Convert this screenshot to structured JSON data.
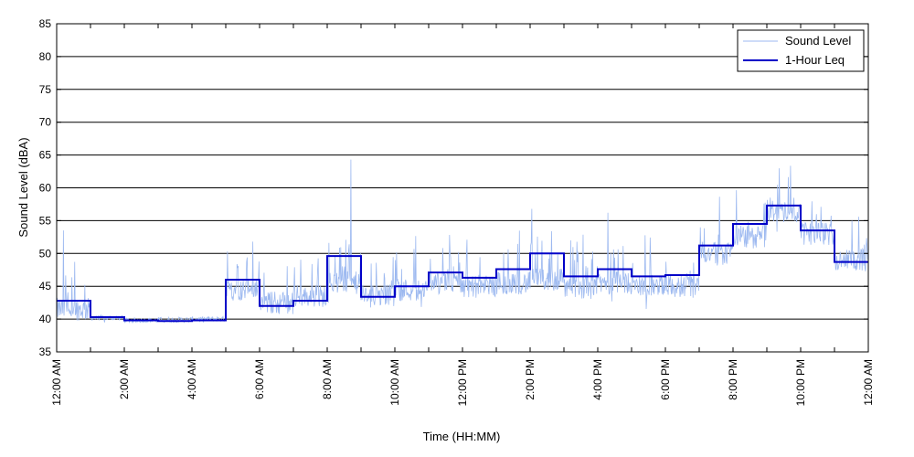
{
  "chart_data": {
    "type": "line",
    "title": "",
    "xlabel": "Time (HH:MM)",
    "ylabel": "Sound Level (dBA)",
    "ylim": [
      35,
      85
    ],
    "yticks": [
      35,
      40,
      45,
      50,
      55,
      60,
      65,
      70,
      75,
      80,
      85
    ],
    "xlim_hours": [
      0,
      24
    ],
    "xtick_hours": [
      0,
      2,
      4,
      6,
      8,
      10,
      12,
      14,
      16,
      18,
      20,
      22,
      24
    ],
    "xtick_labels": [
      "12:00 AM",
      "2:00 AM",
      "4:00 AM",
      "6:00 AM",
      "8:00 AM",
      "10:00 AM",
      "12:00 PM",
      "2:00 PM",
      "4:00 PM",
      "6:00 PM",
      "8:00 PM",
      "10:00 PM",
      "12:00 AM"
    ],
    "grid": "horizontal",
    "legend": {
      "position": "top-right",
      "entries": [
        "Sound Level",
        "1-Hour Leq"
      ]
    },
    "series": [
      {
        "name": "Sound Level",
        "color": "#9db9f0",
        "hourly_baseline": [
          41.5,
          40.2,
          39.8,
          39.9,
          40.0,
          44.5,
          42.5,
          43.5,
          45.5,
          43.5,
          44.5,
          45.5,
          45.0,
          45.5,
          46.0,
          44.8,
          45.5,
          45.0,
          45.0,
          50.0,
          52.5,
          56.5,
          53.0,
          49.0
        ],
        "peaks": [
          {
            "hour": 8.7,
            "value": 64.3
          },
          {
            "hour": 14.05,
            "value": 56.8
          },
          {
            "hour": 16.3,
            "value": 56.2
          },
          {
            "hour": 0.2,
            "value": 53.5
          },
          {
            "hour": 5.8,
            "value": 51.8
          }
        ]
      },
      {
        "name": "1-Hour Leq",
        "color": "#0000c8",
        "hours": [
          0,
          1,
          2,
          3,
          4,
          5,
          6,
          7,
          8,
          9,
          10,
          11,
          12,
          13,
          14,
          15,
          16,
          17,
          18,
          19,
          20,
          21,
          22,
          23
        ],
        "values": [
          42.8,
          40.3,
          39.8,
          39.7,
          39.8,
          46.0,
          42.0,
          42.8,
          49.6,
          43.4,
          45.0,
          47.1,
          46.3,
          47.6,
          50.0,
          46.5,
          47.6,
          46.5,
          46.7,
          51.2,
          54.5,
          57.3,
          53.5,
          48.7
        ]
      }
    ]
  }
}
